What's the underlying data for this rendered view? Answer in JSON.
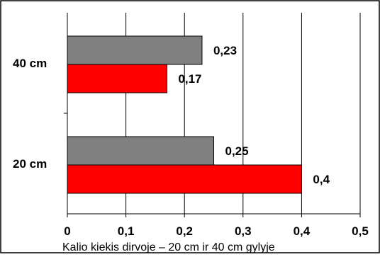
{
  "chart_data": {
    "type": "bar",
    "orientation": "horizontal",
    "categories": [
      "40 cm",
      "20 cm"
    ],
    "series": [
      {
        "color": "#808080",
        "values": [
          0.23,
          0.25
        ]
      },
      {
        "color": "#ff0000",
        "values": [
          0.17,
          0.4
        ]
      }
    ],
    "data_labels": [
      [
        "0,23",
        "0,25"
      ],
      [
        "0,17",
        "0,4"
      ]
    ],
    "xlabel": "Kalio kiekis dirvoje – 20 cm ir 40 cm gylyje",
    "xlim": [
      0,
      0.5
    ],
    "x_ticks": [
      0,
      0.1,
      0.2,
      0.3,
      0.4,
      0.5
    ],
    "x_tick_labels": [
      "0",
      "0,1",
      "0,2",
      "0,3",
      "0,4",
      "0,5"
    ],
    "grid": true,
    "legend": "none"
  }
}
